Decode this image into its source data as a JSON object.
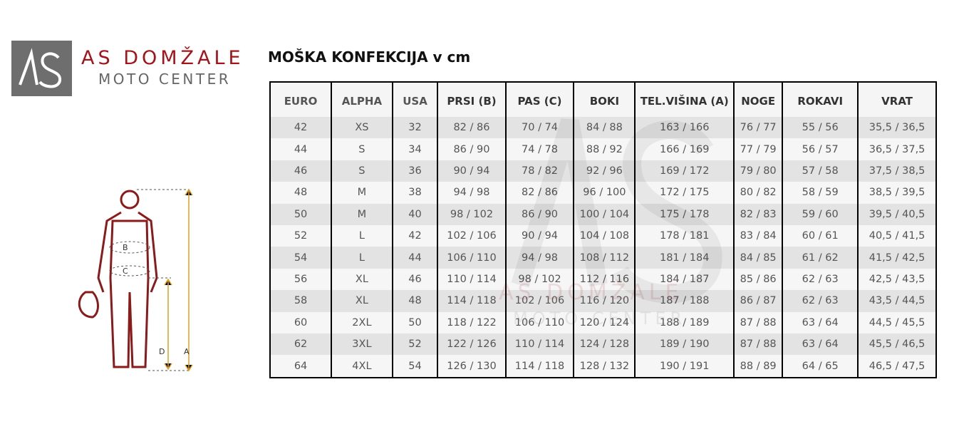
{
  "logo": {
    "mark": "AS",
    "line1": "AS DOMŽALE",
    "line2": "MOTO CENTER",
    "color": "#a3141a"
  },
  "title": "MOŠKA KONFEKCIJA v cm",
  "table": {
    "headers": [
      "EURO",
      "ALPHA",
      "USA",
      "PRSI (B)",
      "PAS (C)",
      "BOKI",
      "TEL.VIŠINA (A)",
      "NOGE",
      "ROKAVI",
      "VRAT"
    ],
    "rows": [
      [
        "42",
        "XS",
        "32",
        "82 / 86",
        "70 / 74",
        "84 / 88",
        "163 / 166",
        "76 / 77",
        "55 / 56",
        "35,5 / 36,5"
      ],
      [
        "44",
        "S",
        "34",
        "86 / 90",
        "74 / 78",
        "88 / 92",
        "166 / 169",
        "77 / 79",
        "56 / 57",
        "36,5 / 37,5"
      ],
      [
        "46",
        "S",
        "36",
        "90 / 94",
        "78 / 82",
        "92 / 96",
        "169 / 172",
        "79 / 80",
        "57 / 58",
        "37,5 / 38,5"
      ],
      [
        "48",
        "M",
        "38",
        "94 / 98",
        "82 / 86",
        "96 / 100",
        "172 / 175",
        "80 / 82",
        "58 / 59",
        "38,5 / 39,5"
      ],
      [
        "50",
        "M",
        "40",
        "98 / 102",
        "86 / 90",
        "100 / 104",
        "175 / 178",
        "82 / 83",
        "59 / 60",
        "39,5 / 40,5"
      ],
      [
        "52",
        "L",
        "42",
        "102 / 106",
        "90 / 94",
        "104 / 108",
        "178 / 181",
        "83 / 84",
        "60 / 61",
        "40,5 / 41,5"
      ],
      [
        "54",
        "L",
        "44",
        "106 / 110",
        "94 / 98",
        "108 / 112",
        "181 / 184",
        "84 / 85",
        "61 / 62",
        "41,5 / 42,5"
      ],
      [
        "56",
        "XL",
        "46",
        "110 / 114",
        "98 / 102",
        "112 / 116",
        "184 / 187",
        "85 / 86",
        "62 / 63",
        "42,5 / 43,5"
      ],
      [
        "58",
        "XL",
        "48",
        "114 / 118",
        "102 / 106",
        "116 / 120",
        "187 / 188",
        "86 / 87",
        "62 / 63",
        "43,5 / 44,5"
      ],
      [
        "60",
        "2XL",
        "50",
        "118 / 122",
        "106 / 110",
        "120 / 124",
        "188 / 189",
        "87 / 88",
        "63 / 64",
        "44,5 / 45,5"
      ],
      [
        "62",
        "3XL",
        "52",
        "122 / 126",
        "110 / 114",
        "124 / 128",
        "189 / 190",
        "87 / 88",
        "63 / 64",
        "45,5 / 46,5"
      ],
      [
        "64",
        "4XL",
        "54",
        "126 / 130",
        "114 / 118",
        "128 / 132",
        "190 / 191",
        "88 / 89",
        "64 / 65",
        "46,5 / 47,5"
      ]
    ]
  },
  "figure": {
    "labels": [
      "A",
      "B",
      "C",
      "D"
    ],
    "figure_color": "#8b1a1a",
    "arrow_color": "#e0a020"
  },
  "watermark": {
    "mark": "AS",
    "line1": "AS DOMŽALE",
    "line2": "MOTO CENTER"
  }
}
